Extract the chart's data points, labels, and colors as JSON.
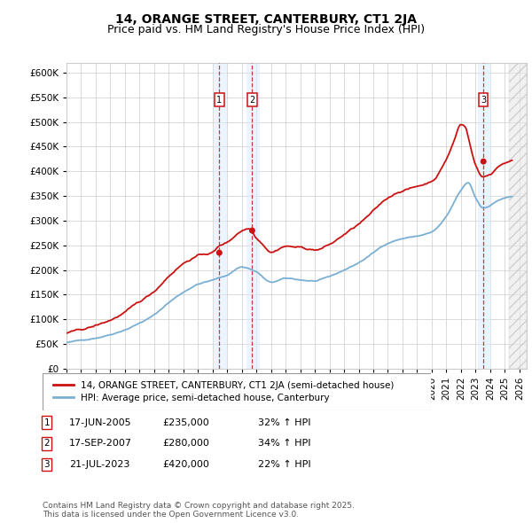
{
  "title": "14, ORANGE STREET, CANTERBURY, CT1 2JA",
  "subtitle": "Price paid vs. HM Land Registry's House Price Index (HPI)",
  "ylim": [
    0,
    620000
  ],
  "yticks": [
    0,
    50000,
    100000,
    150000,
    200000,
    250000,
    300000,
    350000,
    400000,
    450000,
    500000,
    550000,
    600000
  ],
  "xlim_start": 1995.0,
  "xlim_end": 2026.5,
  "sale_dates_num": [
    2005.46,
    2007.71,
    2023.54
  ],
  "sale_prices": [
    235000,
    280000,
    420000
  ],
  "sale_labels": [
    "1",
    "2",
    "3"
  ],
  "sale_dates_str": [
    "17-JUN-2005",
    "17-SEP-2007",
    "21-JUL-2023"
  ],
  "sale_hpi_pct": [
    "32% ↑ HPI",
    "34% ↑ HPI",
    "22% ↑ HPI"
  ],
  "sale_prices_str": [
    "£235,000",
    "£280,000",
    "£420,000"
  ],
  "hpi_color": "#7aafd4",
  "price_color": "#cc1111",
  "dashed_color": "#cc1111",
  "shade_color": "#ddeeff",
  "grid_color": "#cccccc",
  "bg_color": "#ffffff",
  "legend_label_price": "14, ORANGE STREET, CANTERBURY, CT1 2JA (semi-detached house)",
  "legend_label_hpi": "HPI: Average price, semi-detached house, Canterbury",
  "footnote": "Contains HM Land Registry data © Crown copyright and database right 2025.\nThis data is licensed under the Open Government Licence v3.0.",
  "title_fontsize": 10,
  "subtitle_fontsize": 9,
  "tick_fontsize": 7.5,
  "legend_fontsize": 7.5,
  "table_fontsize": 8,
  "footnote_fontsize": 6.5
}
